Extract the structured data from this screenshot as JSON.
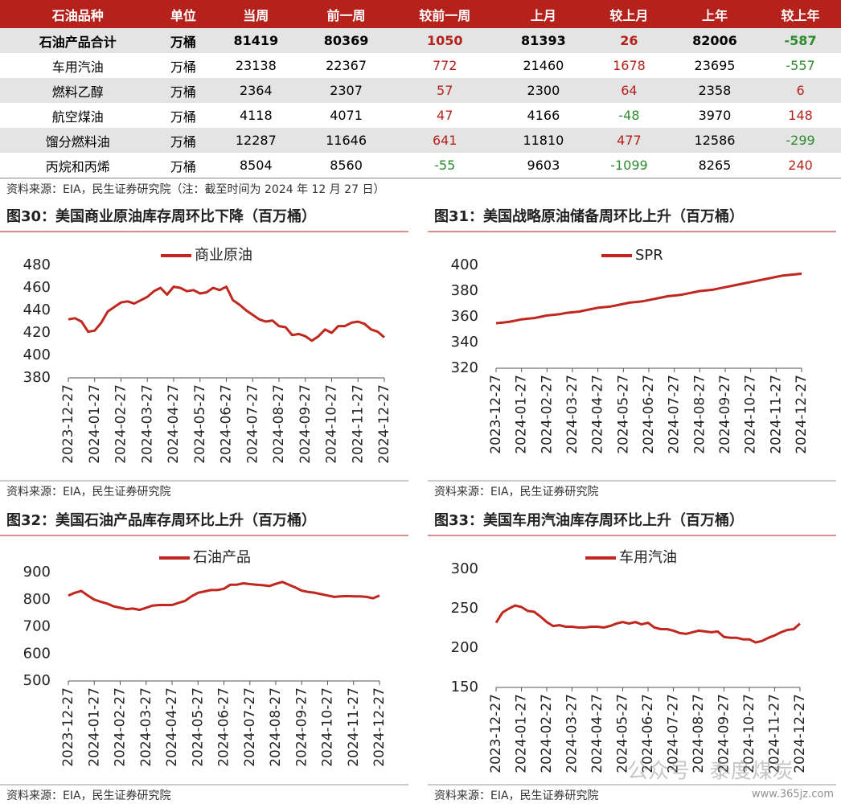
{
  "table": {
    "columns": [
      "石油品种",
      "单位",
      "当周",
      "前一周",
      "较前一周",
      "上月",
      "较上月",
      "上年",
      "较上年"
    ],
    "rows": [
      [
        "石油产品合计",
        "万桶",
        81419,
        80369,
        1050,
        81393,
        26,
        82006,
        -587
      ],
      [
        "车用汽油",
        "万桶",
        23138,
        22367,
        772,
        21460,
        1678,
        23695,
        -557
      ],
      [
        "燃料乙醇",
        "万桶",
        2364,
        2307,
        57,
        2300,
        64,
        2358,
        6
      ],
      [
        "航空煤油",
        "万桶",
        4118,
        4071,
        47,
        4166,
        -48,
        3970,
        148
      ],
      [
        "馏分燃料油",
        "万桶",
        12287,
        11646,
        641,
        11810,
        477,
        12586,
        -299
      ],
      [
        "丙烷和丙烯",
        "万桶",
        8504,
        8560,
        -55,
        9603,
        -1099,
        8265,
        240
      ]
    ],
    "source": "资料来源：EIA，民生证券研究院（注：截至时间为 2024 年 12 月 27 日）"
  },
  "chart_data": [
    {
      "type": "line",
      "title": "图30：美国商业原油库存周环比下降（百万桶）",
      "source": "资料来源：EIA，民生证券研究院",
      "categories": [
        "2023-12-27",
        null,
        null,
        null,
        "2024-01-27",
        null,
        null,
        null,
        "2024-02-27",
        null,
        null,
        null,
        "2024-03-27",
        null,
        null,
        null,
        "2024-04-27",
        null,
        null,
        null,
        "2024-05-27",
        null,
        null,
        null,
        "2024-06-27",
        null,
        null,
        null,
        "2024-07-27",
        null,
        null,
        null,
        "2024-08-27",
        null,
        null,
        null,
        "2024-09-27",
        null,
        null,
        null,
        "2024-10-27",
        null,
        null,
        null,
        "2024-11-27",
        null,
        null,
        null,
        "2024-12-27"
      ],
      "series": [
        {
          "name": "商业原油",
          "color": "#c0281f",
          "values": [
            432,
            433,
            430,
            421,
            422,
            429,
            439,
            443,
            447,
            448,
            446,
            449,
            452,
            457,
            460,
            454,
            461,
            460,
            457,
            458,
            455,
            456,
            460,
            458,
            461,
            449,
            445,
            440,
            436,
            432,
            430,
            431,
            426,
            425,
            418,
            419,
            417,
            413,
            417,
            423,
            420,
            426,
            426,
            429,
            430,
            428,
            423,
            421,
            416
          ]
        }
      ],
      "ylim": [
        380,
        480
      ],
      "yticks": [
        380,
        400,
        420,
        440,
        460,
        480
      ]
    },
    {
      "type": "line",
      "title": "图31：美国战略原油储备周环比上升（百万桶）",
      "source": "资料来源：EIA，民生证券研究院",
      "categories": [
        "2023-12-27",
        null,
        null,
        null,
        "2024-01-27",
        null,
        null,
        null,
        "2024-02-27",
        null,
        null,
        null,
        "2024-03-27",
        null,
        null,
        null,
        "2024-04-27",
        null,
        null,
        null,
        "2024-05-27",
        null,
        null,
        null,
        "2024-06-27",
        null,
        null,
        null,
        "2024-07-27",
        null,
        null,
        null,
        "2024-08-27",
        null,
        null,
        null,
        "2024-09-27",
        null,
        null,
        null,
        "2024-10-27",
        null,
        null,
        null,
        "2024-11-27",
        null,
        null,
        null,
        "2024-12-27"
      ],
      "series": [
        {
          "name": "SPR",
          "color": "#c0281f",
          "values": [
            355,
            355.5,
            356,
            357,
            358,
            358.5,
            359,
            360,
            361,
            361.5,
            362,
            363,
            363.5,
            364,
            365,
            366,
            367,
            367.5,
            368,
            369,
            370,
            371,
            371.5,
            372,
            373,
            374,
            375,
            376,
            376.5,
            377,
            378,
            379,
            380,
            380.5,
            381,
            382,
            383,
            384,
            385,
            386,
            387,
            388,
            389,
            390,
            391,
            392,
            392.5,
            393,
            393.5
          ]
        }
      ],
      "ylim": [
        320,
        400
      ],
      "yticks": [
        320,
        340,
        360,
        380,
        400
      ]
    },
    {
      "type": "line",
      "title": "图32：美国石油产品库存周环比上升（百万桶）",
      "source": "资料来源：EIA，民生证券研究院",
      "categories": [
        "2023-12-27",
        null,
        null,
        null,
        "2024-01-27",
        null,
        null,
        null,
        "2024-02-27",
        null,
        null,
        null,
        "2024-03-27",
        null,
        null,
        null,
        "2024-04-27",
        null,
        null,
        null,
        "2024-05-27",
        null,
        null,
        null,
        "2024-06-27",
        null,
        null,
        null,
        "2024-07-27",
        null,
        null,
        null,
        "2024-08-27",
        null,
        null,
        null,
        "2024-09-27",
        null,
        null,
        null,
        "2024-10-27",
        null,
        null,
        null,
        "2024-11-27",
        null,
        null,
        null,
        "2024-12-27"
      ],
      "series": [
        {
          "name": "石油产品",
          "color": "#c0281f",
          "values": [
            815,
            825,
            832,
            815,
            800,
            792,
            785,
            775,
            770,
            765,
            767,
            762,
            770,
            778,
            780,
            780,
            780,
            788,
            795,
            812,
            825,
            830,
            835,
            835,
            840,
            855,
            855,
            860,
            857,
            855,
            853,
            850,
            858,
            865,
            855,
            845,
            833,
            828,
            825,
            820,
            815,
            810,
            812,
            813,
            812,
            812,
            810,
            805,
            815
          ]
        }
      ],
      "ylim": [
        500,
        900
      ],
      "yticks": [
        500,
        600,
        700,
        800,
        900
      ]
    },
    {
      "type": "line",
      "title": "图33：美国车用汽油库存周环比上升（百万桶）",
      "source": "资料来源：EIA，民生证券研究院",
      "categories": [
        "2023-12-27",
        null,
        null,
        null,
        "2024-01-27",
        null,
        null,
        null,
        "2024-02-27",
        null,
        null,
        null,
        "2024-03-27",
        null,
        null,
        null,
        "2024-04-27",
        null,
        null,
        null,
        "2024-05-27",
        null,
        null,
        null,
        "2024-06-27",
        null,
        null,
        null,
        "2024-07-27",
        null,
        null,
        null,
        "2024-08-27",
        null,
        null,
        null,
        "2024-09-27",
        null,
        null,
        null,
        "2024-10-27",
        null,
        null,
        null,
        "2024-11-27",
        null,
        null,
        null,
        "2024-12-27"
      ],
      "series": [
        {
          "name": "车用汽油",
          "color": "#c0281f",
          "values": [
            232,
            245,
            250,
            254,
            252,
            247,
            246,
            240,
            233,
            228,
            229,
            227,
            227,
            226,
            226,
            227,
            227,
            226,
            228,
            231,
            233,
            231,
            233,
            230,
            232,
            226,
            224,
            224,
            222,
            219,
            218,
            220,
            222,
            221,
            220,
            221,
            214,
            213,
            213,
            211,
            211,
            207,
            209,
            213,
            216,
            220,
            223,
            224,
            231
          ]
        }
      ],
      "ylim": [
        150,
        300
      ],
      "yticks": [
        150,
        200,
        250,
        300
      ]
    }
  ],
  "watermark": [
    "公众号 · 泰度煤炭",
    "www.365jz.com"
  ]
}
